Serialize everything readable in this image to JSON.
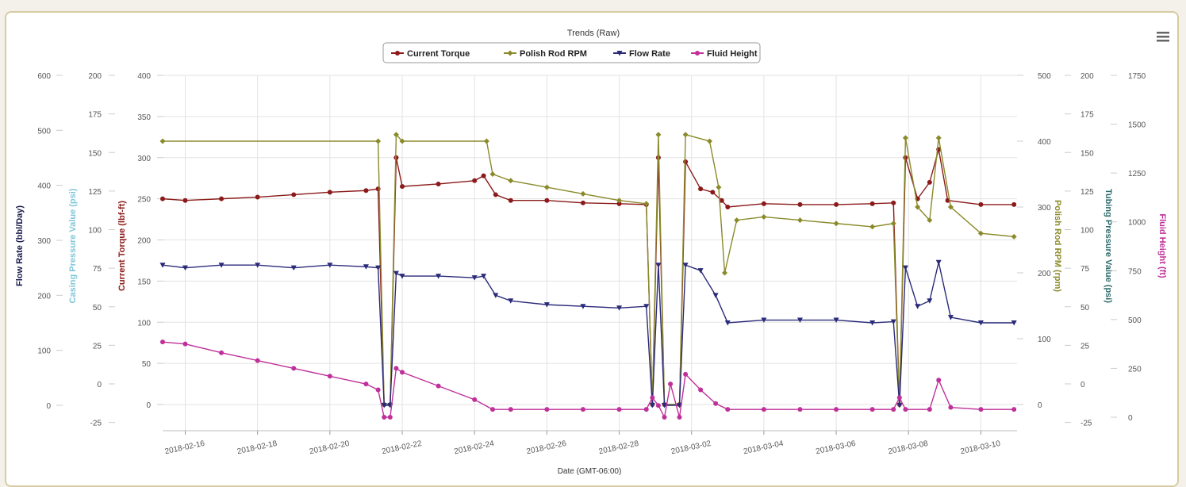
{
  "menu": {
    "icon": "hamburger-menu-icon"
  },
  "chart_data": {
    "type": "line",
    "title": "Trends (Raw)",
    "xlabel": "Date (GMT-06:00)",
    "x_range": [
      "2018-02-15T09:00",
      "2018-03-11T00:00"
    ],
    "x_tick_labels": [
      "2018-02-16",
      "2018-02-18",
      "2018-02-20",
      "2018-02-22",
      "2018-02-24",
      "2018-02-26",
      "2018-02-28",
      "2018-03-02",
      "2018-03-04",
      "2018-03-06",
      "2018-03-08",
      "2018-03-10"
    ],
    "grid": true,
    "legend": "top-center",
    "axes": {
      "flow_rate": {
        "label": "Flow Rate (bbl/Day)",
        "side": "left",
        "color": "#1a1a4e",
        "range": [
          -15,
          600
        ],
        "ticks": [
          0,
          100,
          200,
          300,
          400,
          500,
          600
        ]
      },
      "casing_pressure": {
        "label": "Casing Pressure Value (psi)",
        "side": "left",
        "color": "#7fc6d9",
        "range": [
          -25,
          200
        ],
        "ticks": [
          -25,
          0,
          25,
          50,
          75,
          100,
          125,
          150,
          175,
          200
        ]
      },
      "current_torque": {
        "label": "Current Torque (lbf-ft)",
        "side": "left",
        "color": "#8b1a1a",
        "range": [
          0,
          400
        ],
        "ticks": [
          0,
          50,
          100,
          150,
          200,
          250,
          300,
          350,
          400
        ]
      },
      "polish_rod_rpm": {
        "label": "Polish Rod RPM (rpm)",
        "side": "right",
        "color": "#8a8a2a",
        "range": [
          0,
          500
        ],
        "ticks": [
          0,
          100,
          200,
          300,
          400,
          500
        ]
      },
      "tubing_pressure": {
        "label": "Tubing Pressure Value (psi)",
        "side": "right",
        "color": "#2e6b6b",
        "range": [
          -25,
          200
        ],
        "ticks": [
          -25,
          0,
          25,
          50,
          75,
          100,
          125,
          150,
          175,
          200
        ]
      },
      "fluid_height": {
        "label": "Fluid Height (ft)",
        "side": "right",
        "color": "#c0309a",
        "range": [
          0,
          1750
        ],
        "ticks": [
          0,
          250,
          500,
          750,
          1000,
          1250,
          1500,
          1750
        ]
      }
    },
    "series": [
      {
        "name": "Current Torque",
        "axis": "current_torque",
        "color": "#8b1a1a",
        "marker": "circle",
        "points": [
          [
            "2018-02-15T09:00",
            250
          ],
          [
            "2018-02-16T00:00",
            248
          ],
          [
            "2018-02-17T00:00",
            250
          ],
          [
            "2018-02-18T00:00",
            252
          ],
          [
            "2018-02-19T00:00",
            255
          ],
          [
            "2018-02-20T00:00",
            258
          ],
          [
            "2018-02-21T00:00",
            260
          ],
          [
            "2018-02-21T08:00",
            262
          ],
          [
            "2018-02-21T12:00",
            0
          ],
          [
            "2018-02-21T16:00",
            0
          ],
          [
            "2018-02-21T20:00",
            300
          ],
          [
            "2018-02-22T00:00",
            265
          ],
          [
            "2018-02-23T00:00",
            268
          ],
          [
            "2018-02-24T00:00",
            272
          ],
          [
            "2018-02-24T06:00",
            278
          ],
          [
            "2018-02-24T14:00",
            255
          ],
          [
            "2018-02-25T00:00",
            248
          ],
          [
            "2018-02-26T00:00",
            248
          ],
          [
            "2018-02-27T00:00",
            245
          ],
          [
            "2018-02-28T00:00",
            244
          ],
          [
            "2018-02-28T18:00",
            243
          ],
          [
            "2018-02-28T22:00",
            0
          ],
          [
            "2018-03-01T02:00",
            300
          ],
          [
            "2018-03-01T06:00",
            0
          ],
          [
            "2018-03-01T16:00",
            0
          ],
          [
            "2018-03-01T20:00",
            295
          ],
          [
            "2018-03-02T06:00",
            262
          ],
          [
            "2018-03-02T14:00",
            258
          ],
          [
            "2018-03-02T20:00",
            248
          ],
          [
            "2018-03-03T00:00",
            240
          ],
          [
            "2018-03-04T00:00",
            244
          ],
          [
            "2018-03-05T00:00",
            243
          ],
          [
            "2018-03-06T00:00",
            243
          ],
          [
            "2018-03-07T00:00",
            244
          ],
          [
            "2018-03-07T14:00",
            245
          ],
          [
            "2018-03-07T18:00",
            0
          ],
          [
            "2018-03-07T22:00",
            300
          ],
          [
            "2018-03-08T06:00",
            250
          ],
          [
            "2018-03-08T14:00",
            270
          ],
          [
            "2018-03-08T20:00",
            310
          ],
          [
            "2018-03-09T02:00",
            248
          ],
          [
            "2018-03-10T00:00",
            243
          ],
          [
            "2018-03-10T22:00",
            243
          ]
        ]
      },
      {
        "name": "Polish Rod RPM",
        "axis": "polish_rod_rpm",
        "color": "#8a8a2a",
        "marker": "diamond",
        "points": [
          [
            "2018-02-15T09:00",
            400
          ],
          [
            "2018-02-21T08:00",
            400
          ],
          [
            "2018-02-21T12:00",
            0
          ],
          [
            "2018-02-21T16:00",
            0
          ],
          [
            "2018-02-21T20:00",
            410
          ],
          [
            "2018-02-22T00:00",
            400
          ],
          [
            "2018-02-24T08:00",
            400
          ],
          [
            "2018-02-24T12:00",
            350
          ],
          [
            "2018-02-25T00:00",
            340
          ],
          [
            "2018-02-26T00:00",
            330
          ],
          [
            "2018-02-27T00:00",
            320
          ],
          [
            "2018-02-28T00:00",
            310
          ],
          [
            "2018-02-28T18:00",
            305
          ],
          [
            "2018-02-28T22:00",
            0
          ],
          [
            "2018-03-01T02:00",
            410
          ],
          [
            "2018-03-01T06:00",
            0
          ],
          [
            "2018-03-01T16:00",
            0
          ],
          [
            "2018-03-01T20:00",
            410
          ],
          [
            "2018-03-02T12:00",
            400
          ],
          [
            "2018-03-02T18:00",
            330
          ],
          [
            "2018-03-02T22:00",
            200
          ],
          [
            "2018-03-03T06:00",
            280
          ],
          [
            "2018-03-04T00:00",
            285
          ],
          [
            "2018-03-05T00:00",
            280
          ],
          [
            "2018-03-06T00:00",
            275
          ],
          [
            "2018-03-07T00:00",
            270
          ],
          [
            "2018-03-07T14:00",
            275
          ],
          [
            "2018-03-07T18:00",
            0
          ],
          [
            "2018-03-07T22:00",
            405
          ],
          [
            "2018-03-08T06:00",
            300
          ],
          [
            "2018-03-08T14:00",
            280
          ],
          [
            "2018-03-08T20:00",
            405
          ],
          [
            "2018-03-09T04:00",
            300
          ],
          [
            "2018-03-10T00:00",
            260
          ],
          [
            "2018-03-10T22:00",
            255
          ]
        ]
      },
      {
        "name": "Flow Rate",
        "axis": "flow_rate",
        "color": "#2a2a7a",
        "marker": "triangle-down",
        "points": [
          [
            "2018-02-15T09:00",
            255
          ],
          [
            "2018-02-16T00:00",
            250
          ],
          [
            "2018-02-17T00:00",
            255
          ],
          [
            "2018-02-18T00:00",
            255
          ],
          [
            "2018-02-19T00:00",
            250
          ],
          [
            "2018-02-20T00:00",
            255
          ],
          [
            "2018-02-21T00:00",
            252
          ],
          [
            "2018-02-21T08:00",
            250
          ],
          [
            "2018-02-21T12:00",
            0
          ],
          [
            "2018-02-21T16:00",
            0
          ],
          [
            "2018-02-21T20:00",
            240
          ],
          [
            "2018-02-22T00:00",
            235
          ],
          [
            "2018-02-23T00:00",
            235
          ],
          [
            "2018-02-24T00:00",
            232
          ],
          [
            "2018-02-24T06:00",
            235
          ],
          [
            "2018-02-24T14:00",
            200
          ],
          [
            "2018-02-25T00:00",
            190
          ],
          [
            "2018-02-26T00:00",
            183
          ],
          [
            "2018-02-27T00:00",
            180
          ],
          [
            "2018-02-28T00:00",
            177
          ],
          [
            "2018-02-28T18:00",
            180
          ],
          [
            "2018-02-28T22:00",
            0
          ],
          [
            "2018-03-01T02:00",
            255
          ],
          [
            "2018-03-01T06:00",
            0
          ],
          [
            "2018-03-01T16:00",
            0
          ],
          [
            "2018-03-01T20:00",
            255
          ],
          [
            "2018-03-02T06:00",
            245
          ],
          [
            "2018-03-02T16:00",
            200
          ],
          [
            "2018-03-03T00:00",
            150
          ],
          [
            "2018-03-04T00:00",
            155
          ],
          [
            "2018-03-05T00:00",
            155
          ],
          [
            "2018-03-06T00:00",
            155
          ],
          [
            "2018-03-07T00:00",
            150
          ],
          [
            "2018-03-07T14:00",
            152
          ],
          [
            "2018-03-07T18:00",
            0
          ],
          [
            "2018-03-07T22:00",
            250
          ],
          [
            "2018-03-08T06:00",
            180
          ],
          [
            "2018-03-08T14:00",
            190
          ],
          [
            "2018-03-08T20:00",
            260
          ],
          [
            "2018-03-09T04:00",
            160
          ],
          [
            "2018-03-10T00:00",
            150
          ],
          [
            "2018-03-10T22:00",
            150
          ]
        ]
      },
      {
        "name": "Fluid Height",
        "axis": "fluid_height",
        "color": "#c0309a",
        "marker": "circle",
        "points": [
          [
            "2018-02-15T09:00",
            385
          ],
          [
            "2018-02-16T00:00",
            375
          ],
          [
            "2018-02-17T00:00",
            330
          ],
          [
            "2018-02-18T00:00",
            290
          ],
          [
            "2018-02-19T00:00",
            250
          ],
          [
            "2018-02-20T00:00",
            210
          ],
          [
            "2018-02-21T00:00",
            170
          ],
          [
            "2018-02-21T08:00",
            140
          ],
          [
            "2018-02-21T12:00",
            0
          ],
          [
            "2018-02-21T16:00",
            0
          ],
          [
            "2018-02-21T20:00",
            250
          ],
          [
            "2018-02-22T00:00",
            230
          ],
          [
            "2018-02-23T00:00",
            160
          ],
          [
            "2018-02-24T00:00",
            90
          ],
          [
            "2018-02-24T12:00",
            40
          ],
          [
            "2018-02-25T00:00",
            40
          ],
          [
            "2018-02-26T00:00",
            40
          ],
          [
            "2018-02-27T00:00",
            40
          ],
          [
            "2018-02-28T00:00",
            40
          ],
          [
            "2018-02-28T18:00",
            40
          ],
          [
            "2018-02-28T22:00",
            100
          ],
          [
            "2018-03-01T02:00",
            60
          ],
          [
            "2018-03-01T06:00",
            0
          ],
          [
            "2018-03-01T10:00",
            170
          ],
          [
            "2018-03-01T16:00",
            0
          ],
          [
            "2018-03-01T20:00",
            220
          ],
          [
            "2018-03-02T06:00",
            140
          ],
          [
            "2018-03-02T16:00",
            70
          ],
          [
            "2018-03-03T00:00",
            40
          ],
          [
            "2018-03-04T00:00",
            40
          ],
          [
            "2018-03-05T00:00",
            40
          ],
          [
            "2018-03-06T00:00",
            40
          ],
          [
            "2018-03-07T00:00",
            40
          ],
          [
            "2018-03-07T14:00",
            40
          ],
          [
            "2018-03-07T18:00",
            100
          ],
          [
            "2018-03-07T22:00",
            40
          ],
          [
            "2018-03-08T14:00",
            40
          ],
          [
            "2018-03-08T20:00",
            190
          ],
          [
            "2018-03-09T04:00",
            50
          ],
          [
            "2018-03-10T00:00",
            40
          ],
          [
            "2018-03-10T22:00",
            40
          ]
        ]
      }
    ]
  }
}
